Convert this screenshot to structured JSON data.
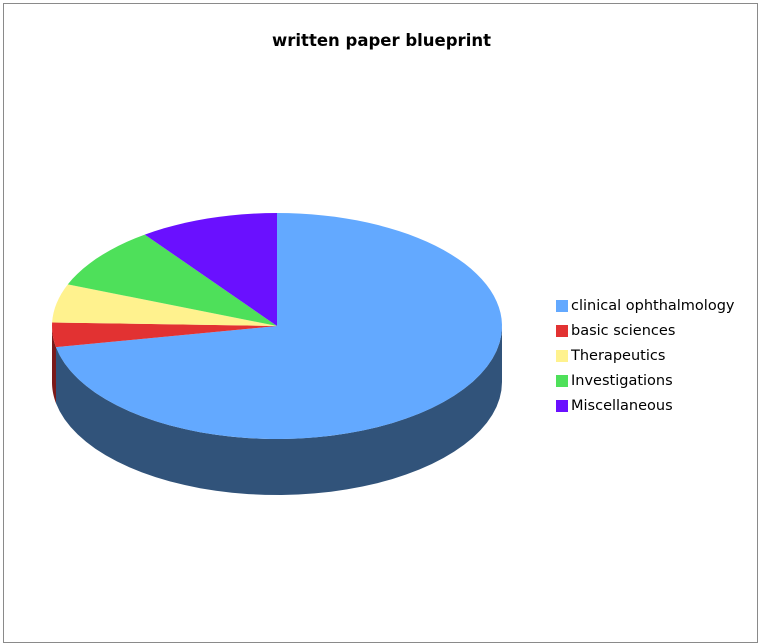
{
  "chart_data": {
    "type": "pie",
    "title": "written paper blueprint",
    "categories": [
      "clinical ophthalmology",
      "basic sciences",
      "Therapeutics",
      "Investigations",
      "Miscellaneous"
    ],
    "values": [
      72,
      3.5,
      5.5,
      9,
      10
    ],
    "colors": [
      "#63a9ff",
      "#e23232",
      "#fff28e",
      "#4ee05a",
      "#6a10ff"
    ],
    "side_colors": [
      "#31537a",
      "#7a1a1a",
      "#8a8246",
      "#2a7a31",
      "#3a0a8a"
    ],
    "legend_position": "right",
    "three_d": true
  }
}
